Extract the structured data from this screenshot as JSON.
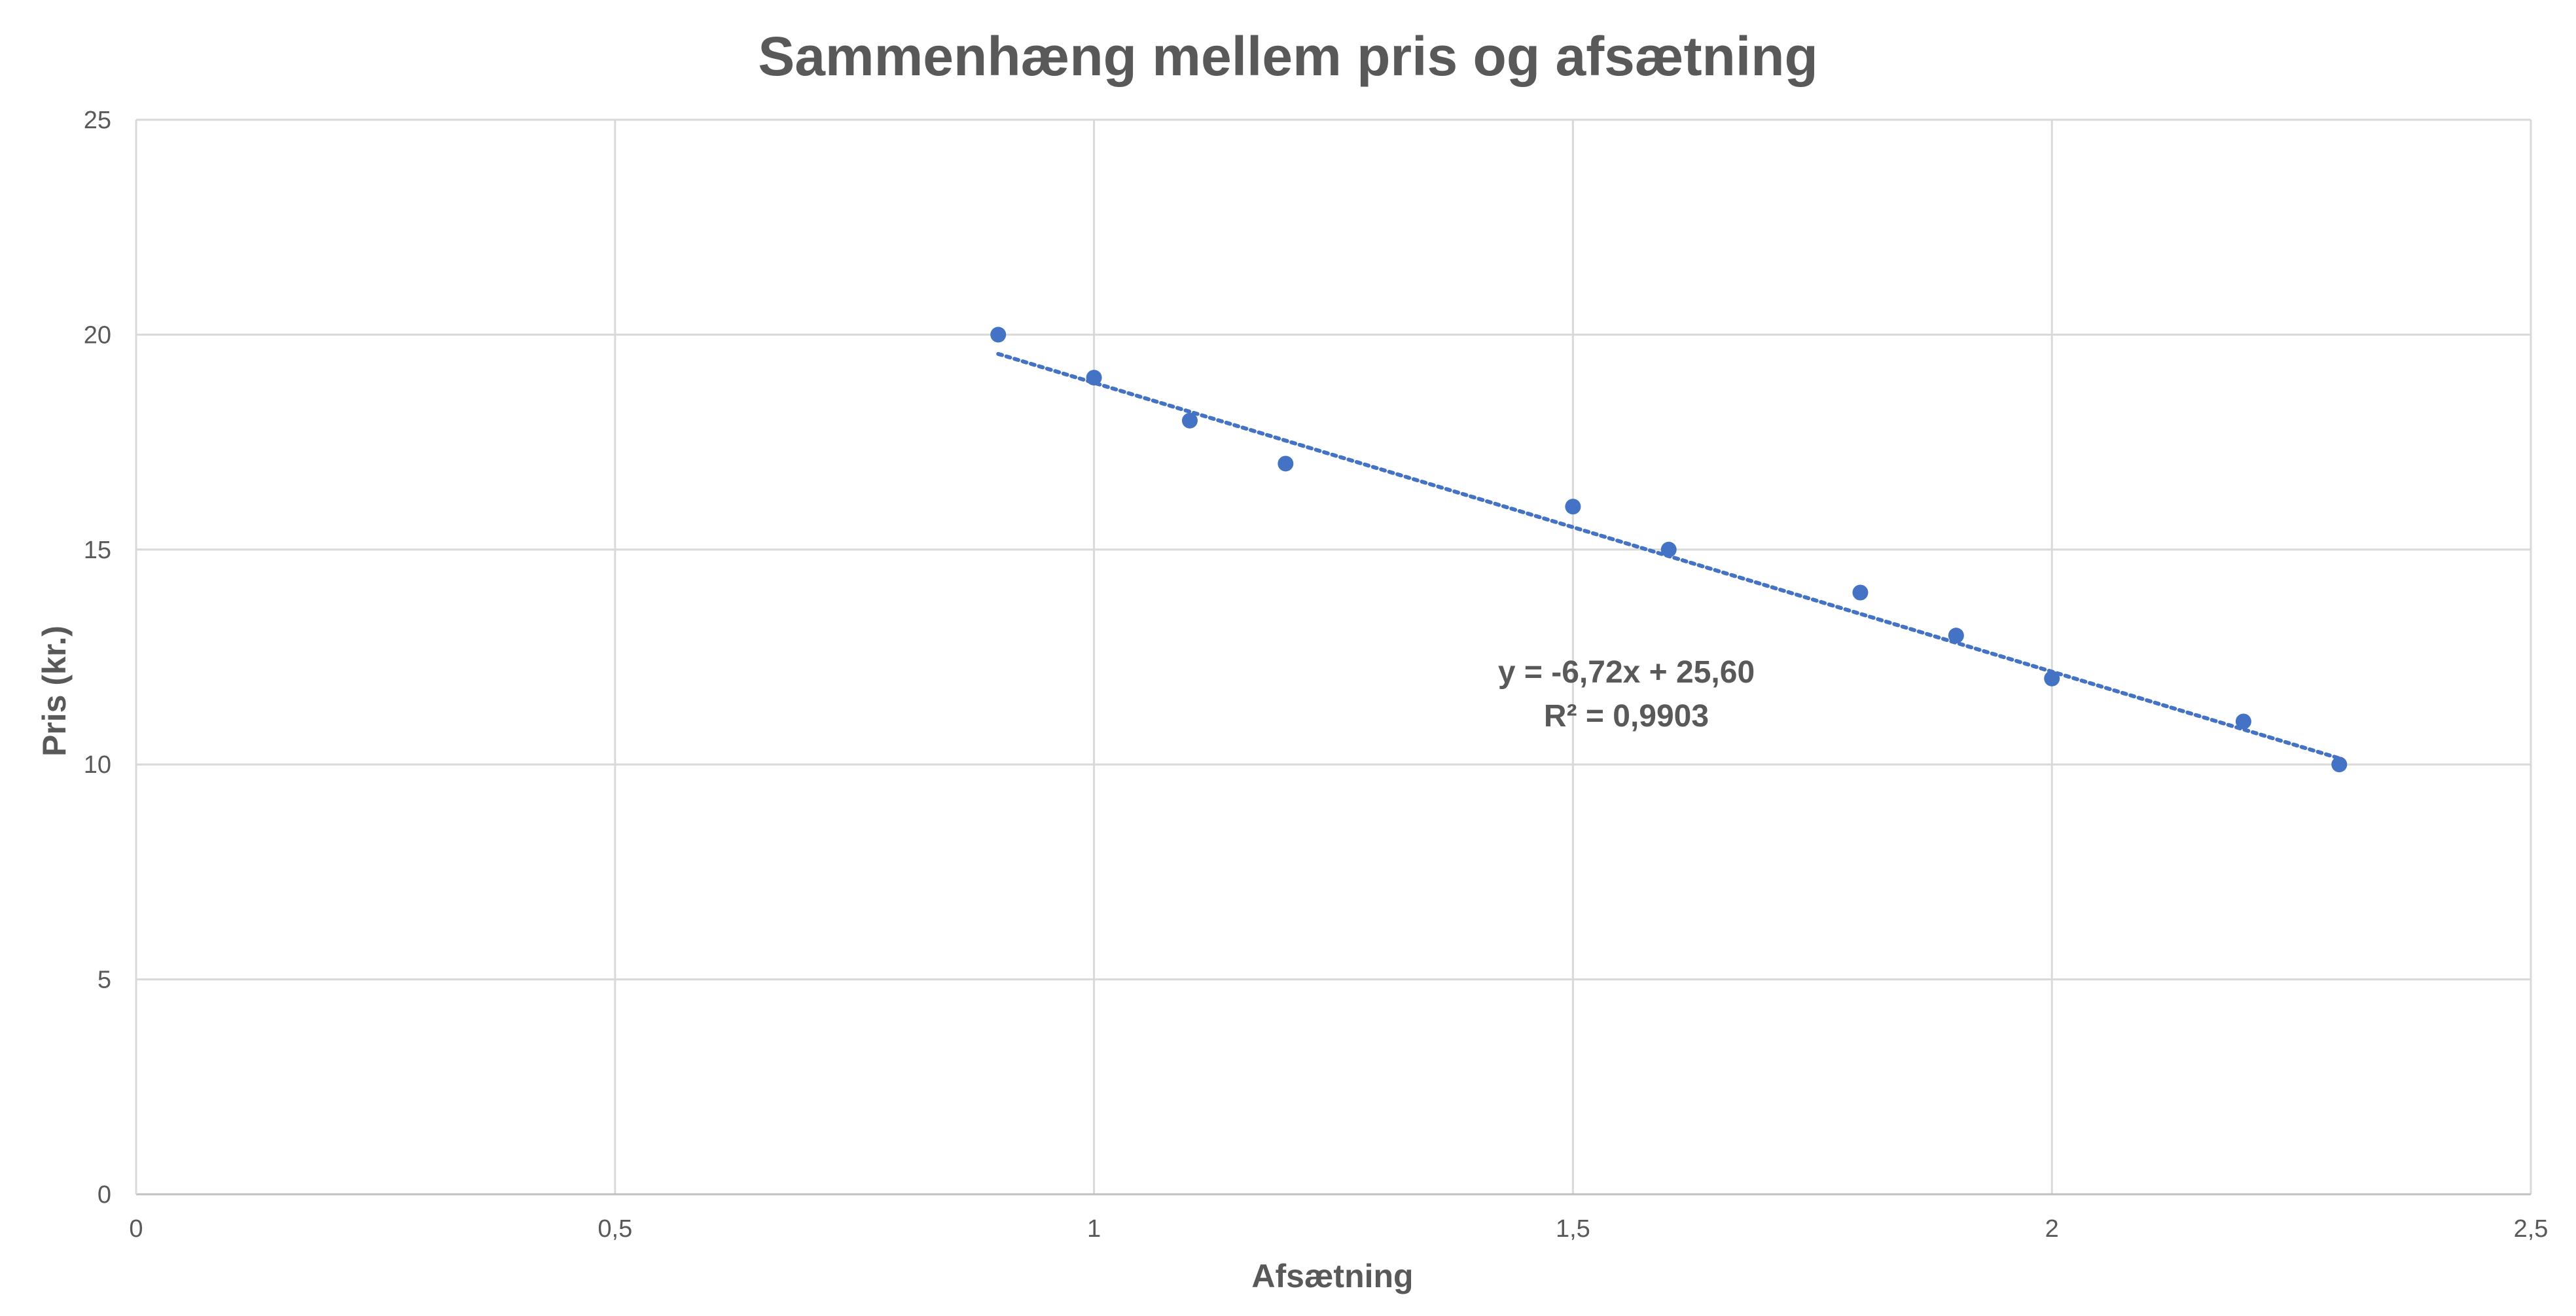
{
  "colors": {
    "text": "#595959",
    "grid": "#d9d9d9",
    "axis": "#bfbfbf",
    "series": "#4472c4"
  },
  "chart_data": {
    "type": "scatter",
    "title": "Sammenhæng mellem pris og afsætning",
    "xlabel": "Afsætning",
    "ylabel": "Pris (kr.)",
    "xlim": [
      0,
      2.5
    ],
    "ylim": [
      0,
      25
    ],
    "x_ticks": [
      "0",
      "0,5",
      "1",
      "1,5",
      "2",
      "2,5"
    ],
    "x_tick_values": [
      0,
      0.5,
      1,
      1.5,
      2,
      2.5
    ],
    "y_ticks": [
      "0",
      "5",
      "10",
      "15",
      "20",
      "25"
    ],
    "y_tick_values": [
      0,
      5,
      10,
      15,
      20,
      25
    ],
    "grid": true,
    "legend": "none",
    "series": [
      {
        "x": [
          0.9,
          1.0,
          1.1,
          1.2,
          1.5,
          1.6,
          1.8,
          1.9,
          2.0,
          2.2,
          2.3
        ],
        "y": [
          20,
          19,
          18,
          17,
          16,
          15,
          14,
          13,
          12,
          11,
          10
        ]
      }
    ],
    "trendline": {
      "type": "linear",
      "style": "dotted",
      "slope": -6.72,
      "intercept": 25.6,
      "x_range": [
        0.9,
        2.3
      ],
      "equation_label": "y = -6,72x + 25,60",
      "r2_label": "R² = 0,9903"
    }
  }
}
